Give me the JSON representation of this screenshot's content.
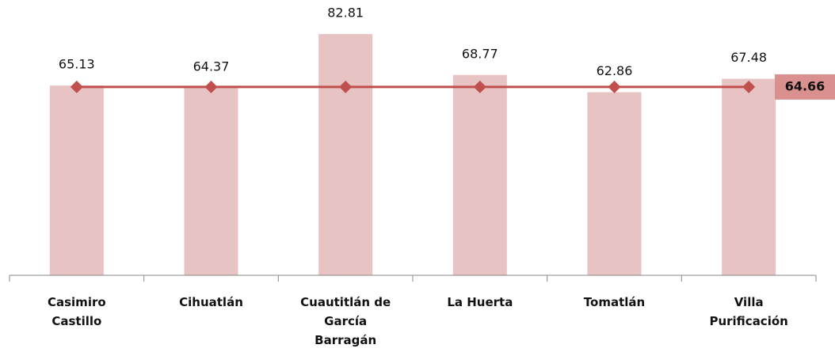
{
  "chart_data": {
    "type": "bar-line",
    "categories": [
      "Casimiro Castillo",
      "Cihuatlán",
      "Cuautitlán de García Barragán",
      "La Huerta",
      "Tomatlán",
      "Villa Purificación"
    ],
    "series": [
      {
        "type": "bar",
        "color": "#e8c3c3",
        "values": [
          65.13,
          64.37,
          82.81,
          68.77,
          62.86,
          67.48
        ]
      },
      {
        "type": "line",
        "color": "#c0504d",
        "values": [
          64.66,
          64.66,
          64.66,
          64.66,
          64.66,
          64.66
        ]
      }
    ],
    "ylim": [
      0,
      85
    ]
  }
}
